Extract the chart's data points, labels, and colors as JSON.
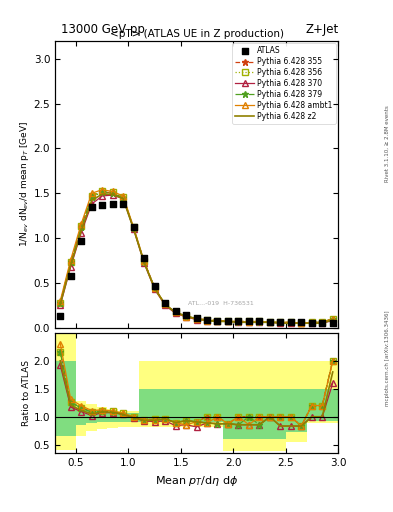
{
  "title_top": "13000 GeV pp",
  "title_right": "Z+Jet",
  "plot_title": "<pT> (ATLAS UE in Z production)",
  "xlabel": "Mean $p_T$/d$\\eta$ d$\\phi$",
  "ylabel_main": "1/N$_{ev}$ dN$_{ev}$/d mean p$_T$ [GeV]",
  "ylabel_ratio": "Ratio to ATLAS",
  "right_label_top": "Rivet 3.1.10, ≥ 2.8M events",
  "right_label_bottom": "mcplots.cern.ch [arXiv:1306.3436]",
  "watermark": "ATL...-019  H-736531",
  "xlim": [
    0.3,
    3.0
  ],
  "ylim_main": [
    0.0,
    3.2
  ],
  "ylim_ratio": [
    0.35,
    2.5
  ],
  "atlas_x": [
    0.35,
    0.45,
    0.55,
    0.65,
    0.75,
    0.85,
    0.95,
    1.05,
    1.15,
    1.25,
    1.35,
    1.45,
    1.55,
    1.65,
    1.75,
    1.85,
    1.95,
    2.05,
    2.15,
    2.25,
    2.35,
    2.45,
    2.55,
    2.65,
    2.75,
    2.85,
    2.95
  ],
  "atlas_y": [
    0.13,
    0.58,
    0.97,
    1.35,
    1.37,
    1.38,
    1.38,
    1.12,
    0.78,
    0.47,
    0.27,
    0.19,
    0.14,
    0.11,
    0.09,
    0.08,
    0.08,
    0.07,
    0.07,
    0.07,
    0.06,
    0.06,
    0.06,
    0.06,
    0.05,
    0.05,
    0.05
  ],
  "py355_x": [
    0.35,
    0.45,
    0.55,
    0.65,
    0.75,
    0.85,
    0.95,
    1.05,
    1.15,
    1.25,
    1.35,
    1.45,
    1.55,
    1.65,
    1.75,
    1.85,
    1.95,
    2.05,
    2.15,
    2.25,
    2.35,
    2.45,
    2.55,
    2.65,
    2.75,
    2.85,
    2.95
  ],
  "py355_y": [
    0.28,
    0.73,
    1.13,
    1.47,
    1.52,
    1.5,
    1.45,
    1.11,
    0.74,
    0.45,
    0.26,
    0.17,
    0.13,
    0.1,
    0.09,
    0.08,
    0.07,
    0.07,
    0.07,
    0.07,
    0.06,
    0.06,
    0.06,
    0.05,
    0.06,
    0.06,
    0.1
  ],
  "py356_x": [
    0.35,
    0.45,
    0.55,
    0.65,
    0.75,
    0.85,
    0.95,
    1.05,
    1.15,
    1.25,
    1.35,
    1.45,
    1.55,
    1.65,
    1.75,
    1.85,
    1.95,
    2.05,
    2.15,
    2.25,
    2.35,
    2.45,
    2.55,
    2.65,
    2.75,
    2.85,
    2.95
  ],
  "py356_y": [
    0.28,
    0.73,
    1.13,
    1.47,
    1.52,
    1.51,
    1.46,
    1.12,
    0.74,
    0.45,
    0.26,
    0.17,
    0.13,
    0.1,
    0.09,
    0.08,
    0.07,
    0.07,
    0.07,
    0.07,
    0.06,
    0.06,
    0.06,
    0.05,
    0.06,
    0.06,
    0.1
  ],
  "py370_x": [
    0.35,
    0.45,
    0.55,
    0.65,
    0.75,
    0.85,
    0.95,
    1.05,
    1.15,
    1.25,
    1.35,
    1.45,
    1.55,
    1.65,
    1.75,
    1.85,
    1.95,
    2.05,
    2.15,
    2.25,
    2.35,
    2.45,
    2.55,
    2.65,
    2.75,
    2.85,
    2.95
  ],
  "py370_y": [
    0.25,
    0.68,
    1.06,
    1.38,
    1.47,
    1.48,
    1.44,
    1.1,
    0.72,
    0.43,
    0.25,
    0.16,
    0.12,
    0.09,
    0.08,
    0.07,
    0.07,
    0.06,
    0.06,
    0.06,
    0.06,
    0.05,
    0.05,
    0.05,
    0.05,
    0.05,
    0.08
  ],
  "py379_x": [
    0.35,
    0.45,
    0.55,
    0.65,
    0.75,
    0.85,
    0.95,
    1.05,
    1.15,
    1.25,
    1.35,
    1.45,
    1.55,
    1.65,
    1.75,
    1.85,
    1.95,
    2.05,
    2.15,
    2.25,
    2.35,
    2.45,
    2.55,
    2.65,
    2.75,
    2.85,
    2.95
  ],
  "py379_y": [
    0.28,
    0.73,
    1.12,
    1.46,
    1.51,
    1.5,
    1.45,
    1.11,
    0.73,
    0.44,
    0.26,
    0.17,
    0.13,
    0.1,
    0.08,
    0.07,
    0.07,
    0.06,
    0.07,
    0.06,
    0.06,
    0.06,
    0.06,
    0.05,
    0.06,
    0.06,
    0.1
  ],
  "pyambt1_x": [
    0.35,
    0.45,
    0.55,
    0.65,
    0.75,
    0.85,
    0.95,
    1.05,
    1.15,
    1.25,
    1.35,
    1.45,
    1.55,
    1.65,
    1.75,
    1.85,
    1.95,
    2.05,
    2.15,
    2.25,
    2.35,
    2.45,
    2.55,
    2.65,
    2.75,
    2.85,
    2.95
  ],
  "pyambt1_y": [
    0.3,
    0.76,
    1.16,
    1.5,
    1.54,
    1.52,
    1.47,
    1.12,
    0.74,
    0.44,
    0.26,
    0.17,
    0.12,
    0.1,
    0.08,
    0.08,
    0.07,
    0.07,
    0.06,
    0.07,
    0.06,
    0.06,
    0.06,
    0.05,
    0.06,
    0.06,
    0.1
  ],
  "pyz2_x": [
    0.35,
    0.45,
    0.55,
    0.65,
    0.75,
    0.85,
    0.95,
    1.05,
    1.15,
    1.25,
    1.35,
    1.45,
    1.55,
    1.65,
    1.75,
    1.85,
    1.95,
    2.05,
    2.15,
    2.25,
    2.35,
    2.45,
    2.55,
    2.65,
    2.75,
    2.85,
    2.95
  ],
  "pyz2_y": [
    0.26,
    0.7,
    1.08,
    1.42,
    1.49,
    1.49,
    1.44,
    1.1,
    0.73,
    0.44,
    0.26,
    0.17,
    0.13,
    0.1,
    0.08,
    0.07,
    0.07,
    0.06,
    0.06,
    0.06,
    0.06,
    0.05,
    0.05,
    0.05,
    0.05,
    0.05,
    0.09
  ],
  "color_355": "#d04010",
  "color_356": "#a0b000",
  "color_370": "#b02040",
  "color_379": "#50a020",
  "color_ambt1": "#e08000",
  "color_z2": "#908000",
  "band_y_edges": [
    0.3,
    0.4,
    0.5,
    0.6,
    0.7,
    0.8,
    0.9,
    1.0,
    1.1,
    1.2,
    1.3,
    1.4,
    1.5,
    1.6,
    1.7,
    1.8,
    1.9,
    2.0,
    2.1,
    2.2,
    2.3,
    2.4,
    2.5,
    2.6,
    2.7,
    2.8,
    2.9,
    3.0
  ],
  "band_yellow_low": [
    0.4,
    0.4,
    0.65,
    0.75,
    0.78,
    0.8,
    0.82,
    0.82,
    0.82,
    0.82,
    0.82,
    0.82,
    0.82,
    0.82,
    0.82,
    0.82,
    0.38,
    0.38,
    0.38,
    0.38,
    0.38,
    0.38,
    0.55,
    0.55,
    0.88,
    0.88,
    0.88
  ],
  "band_yellow_high": [
    2.5,
    2.5,
    1.28,
    1.22,
    1.18,
    1.14,
    1.11,
    1.11,
    2.0,
    2.0,
    2.0,
    2.0,
    2.0,
    2.0,
    2.0,
    2.0,
    2.0,
    2.0,
    2.0,
    2.0,
    2.0,
    2.0,
    2.0,
    2.0,
    2.0,
    2.0,
    2.0
  ],
  "band_green_low": [
    0.65,
    0.65,
    0.86,
    0.88,
    0.9,
    0.9,
    0.9,
    0.9,
    0.9,
    0.9,
    0.9,
    0.9,
    0.9,
    0.9,
    0.9,
    0.9,
    0.6,
    0.6,
    0.6,
    0.6,
    0.6,
    0.6,
    0.72,
    0.72,
    0.92,
    0.92,
    0.92
  ],
  "band_green_high": [
    2.0,
    2.0,
    1.14,
    1.12,
    1.1,
    1.08,
    1.07,
    1.07,
    1.5,
    1.5,
    1.5,
    1.5,
    1.5,
    1.5,
    1.5,
    1.5,
    1.5,
    1.5,
    1.5,
    1.5,
    1.5,
    1.5,
    1.5,
    1.5,
    1.5,
    1.5,
    1.5
  ]
}
